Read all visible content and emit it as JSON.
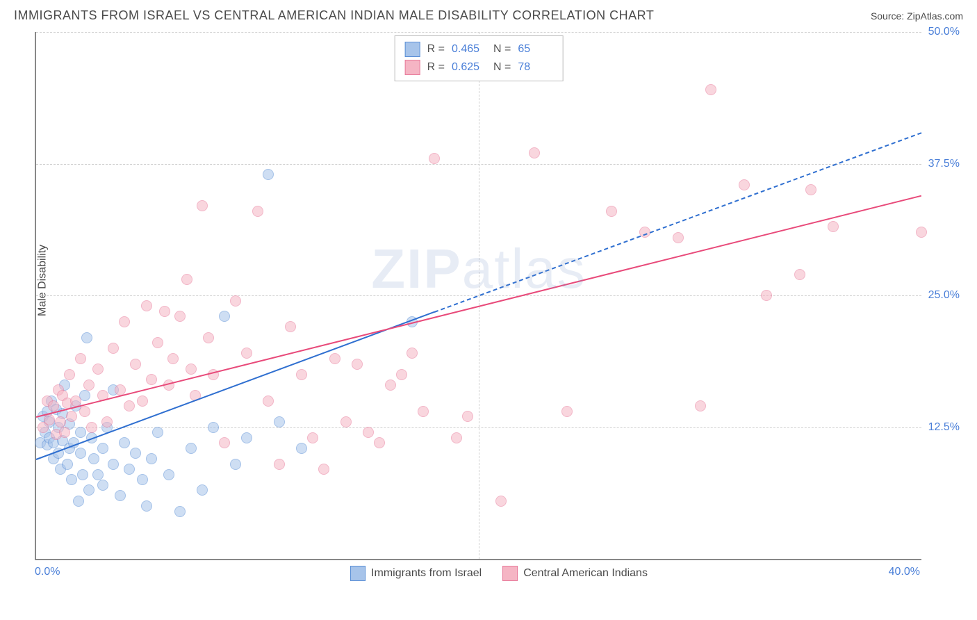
{
  "header": {
    "title": "IMMIGRANTS FROM ISRAEL VS CENTRAL AMERICAN INDIAN MALE DISABILITY CORRELATION CHART",
    "source_label": "Source:",
    "source_value": "ZipAtlas.com"
  },
  "watermark": {
    "bold": "ZIP",
    "rest": "atlas"
  },
  "chart": {
    "type": "scatter",
    "y_axis_label": "Male Disability",
    "xlim": [
      0,
      40
    ],
    "ylim": [
      0,
      50
    ],
    "x_ticks": [
      {
        "value": 0,
        "label": "0.0%"
      },
      {
        "value": 40,
        "label": "40.0%"
      }
    ],
    "y_ticks": [
      {
        "value": 12.5,
        "label": "12.5%"
      },
      {
        "value": 25.0,
        "label": "25.0%"
      },
      {
        "value": 37.5,
        "label": "37.5%"
      },
      {
        "value": 50.0,
        "label": "50.0%"
      }
    ],
    "grid_color": "#d0d0d0",
    "background_color": "#ffffff",
    "marker_radius": 8,
    "marker_opacity": 0.55,
    "series": [
      {
        "name": "Immigrants from Israel",
        "color_fill": "#a7c4ea",
        "color_stroke": "#5b8fd6",
        "R": "0.465",
        "N": "65",
        "trend": {
          "x1": 0,
          "y1": 9.5,
          "x2": 18,
          "y2": 23.5,
          "solid_color": "#2f6fd0",
          "dash_x1": 18,
          "dash_y1": 23.5,
          "dash_x2": 40,
          "dash_y2": 40.5
        },
        "points": [
          [
            0.2,
            11.0
          ],
          [
            0.3,
            13.5
          ],
          [
            0.4,
            12.0
          ],
          [
            0.5,
            14.0
          ],
          [
            0.5,
            10.8
          ],
          [
            0.6,
            11.5
          ],
          [
            0.6,
            13.0
          ],
          [
            0.7,
            15.0
          ],
          [
            0.8,
            11.0
          ],
          [
            0.8,
            9.5
          ],
          [
            0.9,
            14.2
          ],
          [
            1.0,
            12.5
          ],
          [
            1.0,
            10.0
          ],
          [
            1.1,
            8.5
          ],
          [
            1.2,
            13.8
          ],
          [
            1.2,
            11.2
          ],
          [
            1.3,
            16.5
          ],
          [
            1.4,
            9.0
          ],
          [
            1.5,
            10.5
          ],
          [
            1.5,
            12.8
          ],
          [
            1.6,
            7.5
          ],
          [
            1.7,
            11.0
          ],
          [
            1.8,
            14.5
          ],
          [
            1.9,
            5.5
          ],
          [
            2.0,
            10.0
          ],
          [
            2.0,
            12.0
          ],
          [
            2.1,
            8.0
          ],
          [
            2.2,
            15.5
          ],
          [
            2.3,
            21.0
          ],
          [
            2.4,
            6.5
          ],
          [
            2.5,
            11.5
          ],
          [
            2.6,
            9.5
          ],
          [
            2.8,
            8.0
          ],
          [
            3.0,
            10.5
          ],
          [
            3.0,
            7.0
          ],
          [
            3.2,
            12.5
          ],
          [
            3.5,
            9.0
          ],
          [
            3.5,
            16.0
          ],
          [
            3.8,
            6.0
          ],
          [
            4.0,
            11.0
          ],
          [
            4.2,
            8.5
          ],
          [
            4.5,
            10.0
          ],
          [
            4.8,
            7.5
          ],
          [
            5.0,
            5.0
          ],
          [
            5.2,
            9.5
          ],
          [
            5.5,
            12.0
          ],
          [
            6.0,
            8.0
          ],
          [
            6.5,
            4.5
          ],
          [
            7.0,
            10.5
          ],
          [
            7.5,
            6.5
          ],
          [
            8.0,
            12.5
          ],
          [
            8.5,
            23.0
          ],
          [
            9.0,
            9.0
          ],
          [
            9.5,
            11.5
          ],
          [
            10.5,
            36.5
          ],
          [
            11.0,
            13.0
          ],
          [
            12.0,
            10.5
          ],
          [
            17.0,
            22.5
          ]
        ]
      },
      {
        "name": "Central American Indians",
        "color_fill": "#f5b5c4",
        "color_stroke": "#e87a9a",
        "R": "0.625",
        "N": "78",
        "trend": {
          "x1": 0,
          "y1": 13.5,
          "x2": 40,
          "y2": 34.5,
          "solid_color": "#e84a7a"
        },
        "points": [
          [
            0.3,
            12.5
          ],
          [
            0.5,
            15.0
          ],
          [
            0.6,
            13.2
          ],
          [
            0.8,
            14.5
          ],
          [
            0.9,
            11.8
          ],
          [
            1.0,
            16.0
          ],
          [
            1.1,
            13.0
          ],
          [
            1.2,
            15.5
          ],
          [
            1.3,
            12.0
          ],
          [
            1.4,
            14.8
          ],
          [
            1.5,
            17.5
          ],
          [
            1.6,
            13.5
          ],
          [
            1.8,
            15.0
          ],
          [
            2.0,
            19.0
          ],
          [
            2.2,
            14.0
          ],
          [
            2.4,
            16.5
          ],
          [
            2.5,
            12.5
          ],
          [
            2.8,
            18.0
          ],
          [
            3.0,
            15.5
          ],
          [
            3.2,
            13.0
          ],
          [
            3.5,
            20.0
          ],
          [
            3.8,
            16.0
          ],
          [
            4.0,
            22.5
          ],
          [
            4.2,
            14.5
          ],
          [
            4.5,
            18.5
          ],
          [
            4.8,
            15.0
          ],
          [
            5.0,
            24.0
          ],
          [
            5.2,
            17.0
          ],
          [
            5.5,
            20.5
          ],
          [
            5.8,
            23.5
          ],
          [
            6.0,
            16.5
          ],
          [
            6.2,
            19.0
          ],
          [
            6.5,
            23.0
          ],
          [
            6.8,
            26.5
          ],
          [
            7.0,
            18.0
          ],
          [
            7.2,
            15.5
          ],
          [
            7.5,
            33.5
          ],
          [
            7.8,
            21.0
          ],
          [
            8.0,
            17.5
          ],
          [
            8.5,
            11.0
          ],
          [
            9.0,
            24.5
          ],
          [
            9.5,
            19.5
          ],
          [
            10.0,
            33.0
          ],
          [
            10.5,
            15.0
          ],
          [
            11.0,
            9.0
          ],
          [
            11.5,
            22.0
          ],
          [
            12.0,
            17.5
          ],
          [
            12.5,
            11.5
          ],
          [
            13.0,
            8.5
          ],
          [
            13.5,
            19.0
          ],
          [
            14.0,
            13.0
          ],
          [
            14.5,
            18.5
          ],
          [
            15.0,
            12.0
          ],
          [
            15.5,
            11.0
          ],
          [
            16.0,
            16.5
          ],
          [
            16.5,
            17.5
          ],
          [
            17.0,
            19.5
          ],
          [
            17.5,
            14.0
          ],
          [
            18.0,
            38.0
          ],
          [
            19.0,
            11.5
          ],
          [
            19.5,
            13.5
          ],
          [
            21.0,
            5.5
          ],
          [
            22.5,
            38.5
          ],
          [
            24.0,
            14.0
          ],
          [
            26.0,
            33.0
          ],
          [
            27.5,
            31.0
          ],
          [
            29.0,
            30.5
          ],
          [
            30.0,
            14.5
          ],
          [
            30.5,
            44.5
          ],
          [
            32.0,
            35.5
          ],
          [
            33.0,
            25.0
          ],
          [
            34.5,
            27.0
          ],
          [
            35.0,
            35.0
          ],
          [
            36.0,
            31.5
          ],
          [
            40.0,
            31.0
          ]
        ]
      }
    ]
  },
  "bottom_legend": [
    {
      "label": "Immigrants from Israel",
      "fill": "#a7c4ea",
      "stroke": "#5b8fd6"
    },
    {
      "label": "Central American Indians",
      "fill": "#f5b5c4",
      "stroke": "#e87a9a"
    }
  ]
}
